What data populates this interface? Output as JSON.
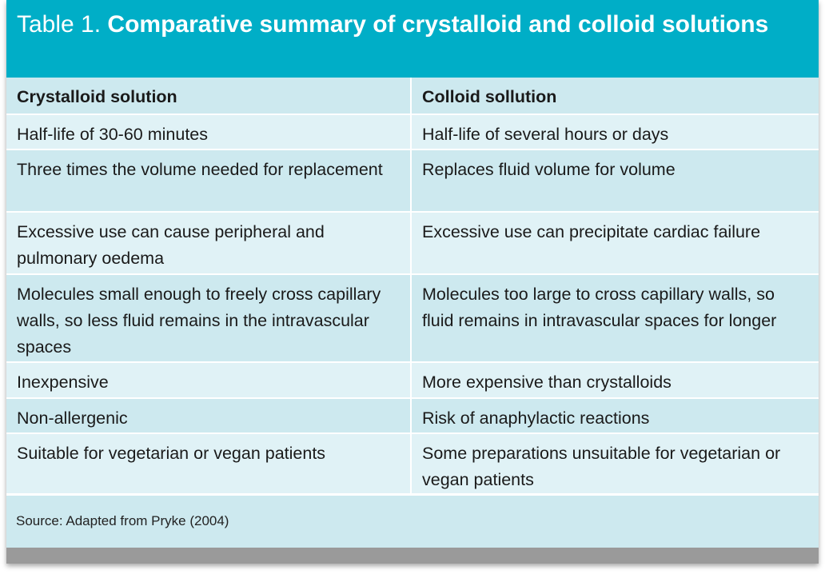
{
  "title": {
    "lead": "Table 1.",
    "text": "Comparative summary of crystalloid and colloid solutions"
  },
  "table": {
    "headers": [
      "Crystalloid solution",
      "Colloid sollution"
    ],
    "rows": [
      [
        "Half-life of 30-60 minutes",
        "Half-life of several hours or days"
      ],
      [
        "Three times the volume needed for replacement",
        "Replaces fluid volume for volume"
      ],
      [
        "Excessive use can cause peripheral and pulmonary oedema",
        "Excessive use can precipitate cardiac failure"
      ],
      [
        "Molecules small enough to freely cross capillary walls, so less fluid remains in the intravascular spaces",
        "Molecules too large to cross capillary walls, so fluid remains in intravascular spaces for longer"
      ],
      [
        "Inexpensive",
        "More expensive than crystalloids"
      ],
      [
        "Non-allergenic",
        "Risk of anaphylactic reactions"
      ],
      [
        "Suitable for vegetarian or vegan patients",
        "Some preparations unsuitable for vegetarian or vegan patients"
      ]
    ]
  },
  "footer": {
    "source": "Source: Adapted from Pryke (2004)"
  },
  "colors": {
    "header": "#00aec7",
    "row_dark": "#cde9ef",
    "row_light": "#e0f2f6"
  }
}
